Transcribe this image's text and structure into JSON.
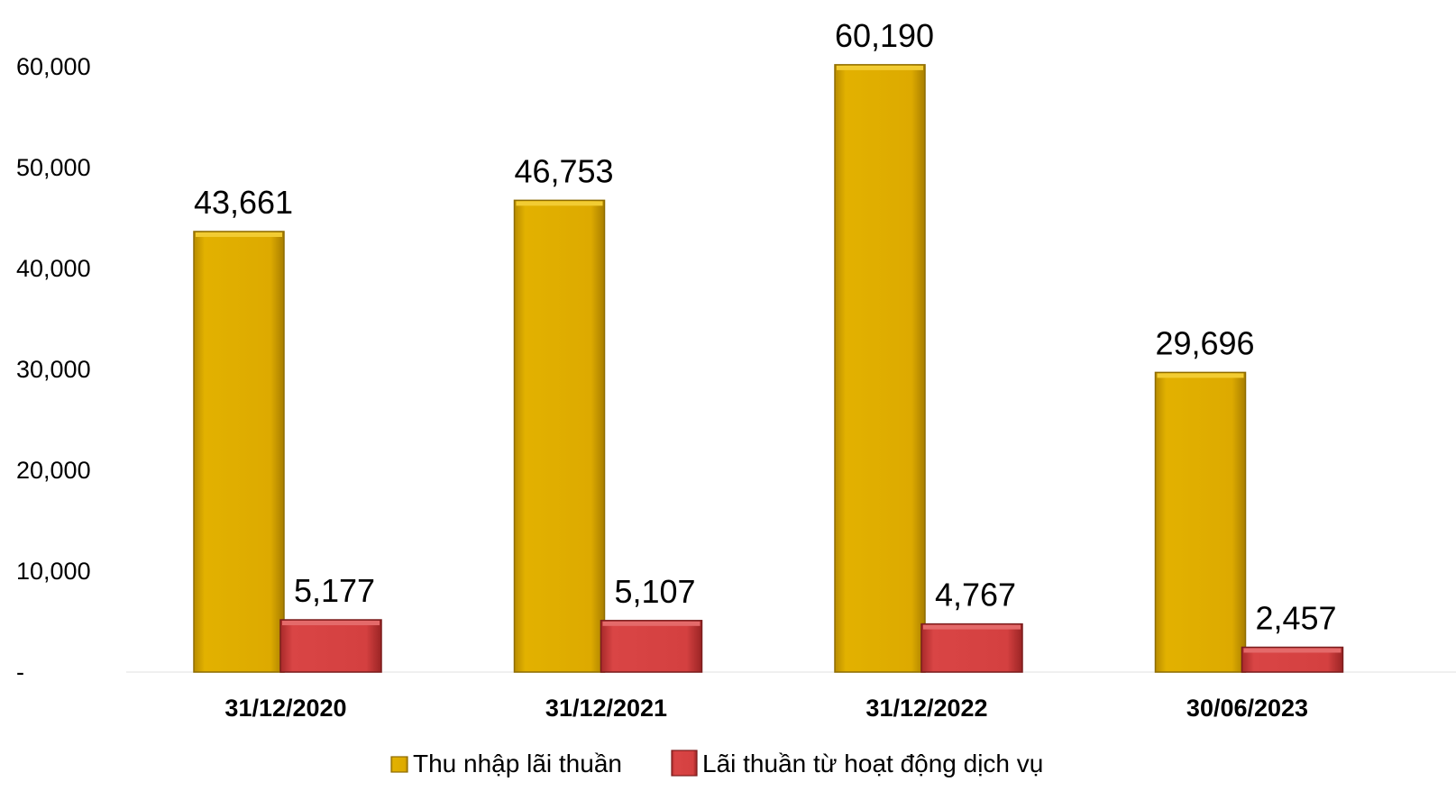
{
  "chart_data": {
    "type": "bar",
    "categories": [
      "31/12/2020",
      "31/12/2021",
      "31/12/2022",
      "30/06/2023"
    ],
    "series": [
      {
        "name": "Thu nhập lãi thuần",
        "values": [
          43661,
          46753,
          60190,
          29696
        ],
        "labels": [
          "43,661",
          "46,753",
          "60,190",
          "29,696"
        ],
        "color": "#D9A800"
      },
      {
        "name": "Lãi thuần từ hoạt động dịch vụ",
        "values": [
          5177,
          5107,
          4767,
          2457
        ],
        "labels": [
          "5,177",
          "5,107",
          "4,767",
          "2,457"
        ],
        "color": "#D04040"
      }
    ],
    "y_ticks": [
      "-",
      "10,000",
      "20,000",
      "30,000",
      "40,000",
      "50,000",
      "60,000"
    ],
    "y_tick_values": [
      0,
      10000,
      20000,
      30000,
      40000,
      50000,
      60000
    ],
    "ylim": [
      0,
      60000
    ],
    "legend_position": "bottom",
    "grid": false
  }
}
